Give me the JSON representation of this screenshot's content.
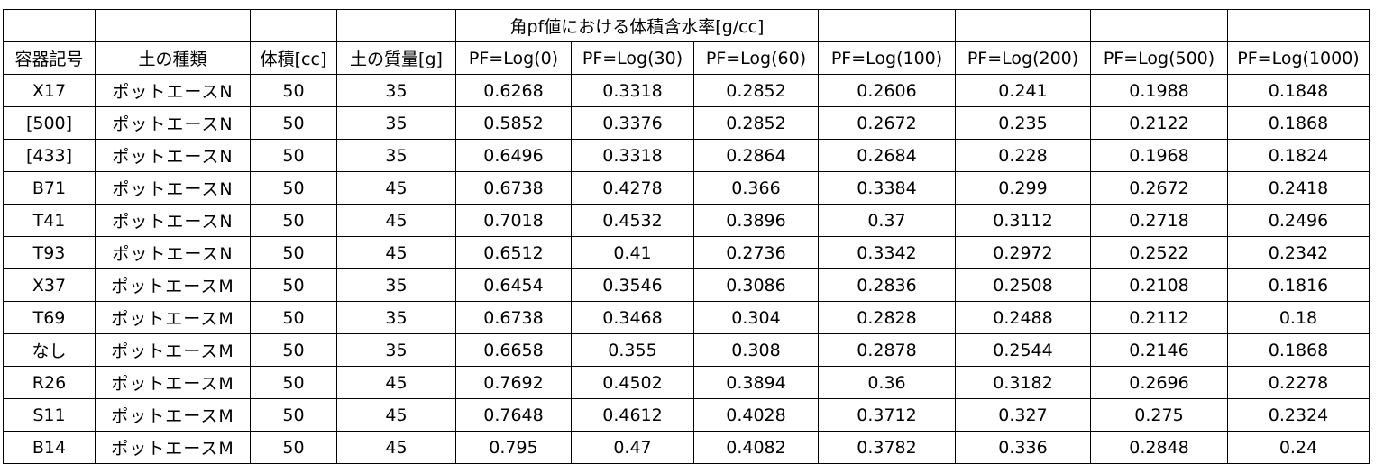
{
  "sheet": {
    "title": "角pf値における体積含水率[g/cc]",
    "headers": {
      "container": "容器記号",
      "soil_type": "土の種類",
      "volume": "体積[cc]",
      "soil_mass": "土の質量[g]",
      "pf": [
        "PF=Log(0)",
        "PF=Log(30)",
        "PF=Log(60)",
        "PF=Log(100)",
        "PF=Log(200)",
        "PF=Log(500)",
        "PF=Log(1000)"
      ]
    },
    "rows": [
      {
        "id": "X17",
        "kind": "ポットエースN",
        "volume": "50",
        "mass": "35",
        "values": [
          "0.6268",
          "0.3318",
          "0.2852",
          "0.2606",
          "0.241",
          "0.1988",
          "0.1848"
        ]
      },
      {
        "id": "[500]",
        "kind": "ポットエースN",
        "volume": "50",
        "mass": "35",
        "values": [
          "0.5852",
          "0.3376",
          "0.2852",
          "0.2672",
          "0.235",
          "0.2122",
          "0.1868"
        ]
      },
      {
        "id": "[433]",
        "kind": "ポットエースN",
        "volume": "50",
        "mass": "35",
        "values": [
          "0.6496",
          "0.3318",
          "0.2864",
          "0.2684",
          "0.228",
          "0.1968",
          "0.1824"
        ]
      },
      {
        "id": "B71",
        "kind": "ポットエースN",
        "volume": "50",
        "mass": "45",
        "values": [
          "0.6738",
          "0.4278",
          "0.366",
          "0.3384",
          "0.299",
          "0.2672",
          "0.2418"
        ]
      },
      {
        "id": "T41",
        "kind": "ポットエースN",
        "volume": "50",
        "mass": "45",
        "values": [
          "0.7018",
          "0.4532",
          "0.3896",
          "0.37",
          "0.3112",
          "0.2718",
          "0.2496"
        ]
      },
      {
        "id": "T93",
        "kind": "ポットエースN",
        "volume": "50",
        "mass": "45",
        "values": [
          "0.6512",
          "0.41",
          "0.2736",
          "0.3342",
          "0.2972",
          "0.2522",
          "0.2342"
        ]
      },
      {
        "id": "X37",
        "kind": "ポットエースM",
        "volume": "50",
        "mass": "35",
        "values": [
          "0.6454",
          "0.3546",
          "0.3086",
          "0.2836",
          "0.2508",
          "0.2108",
          "0.1816"
        ]
      },
      {
        "id": "T69",
        "kind": "ポットエースM",
        "volume": "50",
        "mass": "35",
        "values": [
          "0.6738",
          "0.3468",
          "0.304",
          "0.2828",
          "0.2488",
          "0.2112",
          "0.18"
        ]
      },
      {
        "id": "なし",
        "kind": "ポットエースM",
        "volume": "50",
        "mass": "35",
        "values": [
          "0.6658",
          "0.355",
          "0.308",
          "0.2878",
          "0.2544",
          "0.2146",
          "0.1868"
        ]
      },
      {
        "id": "R26",
        "kind": "ポットエースM",
        "volume": "50",
        "mass": "45",
        "values": [
          "0.7692",
          "0.4502",
          "0.3894",
          "0.36",
          "0.3182",
          "0.2696",
          "0.2278"
        ]
      },
      {
        "id": "S11",
        "kind": "ポットエースM",
        "volume": "50",
        "mass": "45",
        "values": [
          "0.7648",
          "0.4612",
          "0.4028",
          "0.3712",
          "0.327",
          "0.275",
          "0.2324"
        ]
      },
      {
        "id": "B14",
        "kind": "ポットエースM",
        "volume": "50",
        "mass": "45",
        "values": [
          "0.795",
          "0.47",
          "0.4082",
          "0.3782",
          "0.336",
          "0.2848",
          "0.24"
        ]
      }
    ]
  }
}
